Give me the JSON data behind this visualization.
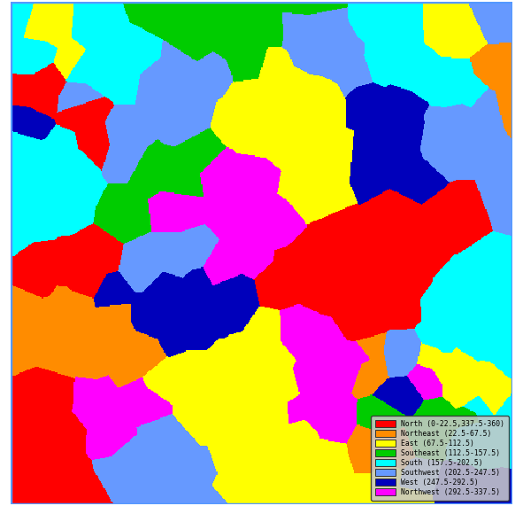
{
  "colors": {
    "North": "#FF0000",
    "Northeast": "#FF8C00",
    "East": "#FFFF00",
    "Southeast": "#00CC00",
    "South": "#00FFFF",
    "Southwest": "#6699FF",
    "West": "#0000BB",
    "Northwest": "#FF00FF"
  },
  "color_list": [
    "#FF0000",
    "#FF8C00",
    "#FFFF00",
    "#00CC00",
    "#00FFFF",
    "#6699FF",
    "#0000BB",
    "#FF00FF"
  ],
  "legend_labels": [
    "North (0-22.5,337.5-360)",
    "Northeast (22.5-67.5)",
    "East (67.5-112.5)",
    "Southeast (112.5-157.5)",
    "South (157.5-202.5)",
    "Southwest (202.5-247.5)",
    "West (247.5-292.5)",
    "Northwest (292.5-337.5)"
  ],
  "border_color": "#5599FF",
  "legend_bg": "#C8C8C8",
  "n_seeds": 300,
  "seed": 1234,
  "img_size": 500,
  "figsize": [
    5.91,
    5.71
  ],
  "dpi": 100
}
